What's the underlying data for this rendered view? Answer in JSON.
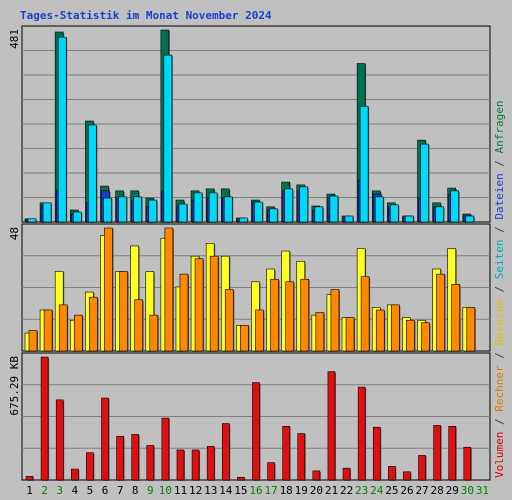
{
  "title": "Tages-Statistik im Monat November 2024",
  "right_legend": [
    {
      "text": "Volumen",
      "color": "#e00000"
    },
    {
      "text": " / ",
      "color": "#404040"
    },
    {
      "text": "Rechner",
      "color": "#e07800"
    },
    {
      "text": " / ",
      "color": "#404040"
    },
    {
      "text": "Besuche",
      "color": "#e0c000"
    },
    {
      "text": " / ",
      "color": "#404040"
    },
    {
      "text": "Seiten",
      "color": "#00a8c8"
    },
    {
      "text": " / ",
      "color": "#404040"
    },
    {
      "text": "Dateien",
      "color": "#1a3fd0"
    },
    {
      "text": " / ",
      "color": "#404040"
    },
    {
      "text": "Anfragen",
      "color": "#008040"
    }
  ],
  "colors": {
    "anfragen": "#007050",
    "dateien": "#1a3fd0",
    "seiten": "#00d8f8",
    "besuche": "#ffff20",
    "rechner": "#ff8800",
    "volumen": "#e01010",
    "weekday_label": "#000000",
    "weekend_label": "#008000"
  },
  "chart_data": [
    {
      "type": "bar",
      "name": "requests-panel",
      "ylabel": "481",
      "ylim": [
        0,
        481
      ],
      "x": [
        "1",
        "2",
        "3",
        "4",
        "5",
        "6",
        "7",
        "8",
        "9",
        "10",
        "11",
        "12",
        "13",
        "14",
        "15",
        "16",
        "17",
        "18",
        "19",
        "20",
        "21",
        "22",
        "23",
        "24",
        "25",
        "26",
        "27",
        "28",
        "29",
        "30",
        "31"
      ],
      "weekend": [
        false,
        true,
        true,
        false,
        false,
        false,
        false,
        false,
        true,
        true,
        false,
        false,
        false,
        false,
        false,
        true,
        true,
        false,
        false,
        false,
        false,
        false,
        true,
        true,
        false,
        false,
        false,
        false,
        false,
        true,
        true
      ],
      "series": [
        {
          "name": "Anfragen",
          "values": [
            8,
            48,
            476,
            30,
            253,
            90,
            78,
            78,
            60,
            481,
            55,
            78,
            83,
            83,
            10,
            55,
            38,
            100,
            93,
            40,
            70,
            15,
            397,
            78,
            48,
            15,
            205,
            48,
            85,
            20,
            0
          ]
        },
        {
          "name": "Dateien",
          "values": [
            5,
            40,
            80,
            20,
            48,
            78,
            60,
            55,
            38,
            78,
            40,
            55,
            60,
            60,
            5,
            48,
            30,
            78,
            78,
            30,
            60,
            10,
            105,
            70,
            38,
            10,
            60,
            38,
            70,
            15,
            0
          ]
        },
        {
          "name": "Seiten",
          "values": [
            8,
            48,
            463,
            25,
            243,
            60,
            63,
            63,
            55,
            418,
            45,
            73,
            73,
            63,
            10,
            50,
            33,
            83,
            88,
            38,
            65,
            15,
            290,
            63,
            43,
            15,
            195,
            38,
            78,
            15,
            0
          ]
        }
      ]
    },
    {
      "type": "bar",
      "name": "visits-panel",
      "ylabel": "48",
      "ylim": [
        0,
        48
      ],
      "x": [
        "1",
        "2",
        "3",
        "4",
        "5",
        "6",
        "7",
        "8",
        "9",
        "10",
        "11",
        "12",
        "13",
        "14",
        "15",
        "16",
        "17",
        "18",
        "19",
        "20",
        "21",
        "22",
        "23",
        "24",
        "25",
        "26",
        "27",
        "28",
        "29",
        "30",
        "31"
      ],
      "series": [
        {
          "name": "Besuche",
          "values": [
            7,
            16,
            31,
            12,
            23,
            45,
            31,
            41,
            31,
            44,
            25,
            37,
            42,
            37,
            10,
            27,
            32,
            39,
            35,
            14,
            22,
            13,
            40,
            17,
            18,
            13,
            12,
            32,
            40,
            17,
            0
          ]
        },
        {
          "name": "Rechner",
          "values": [
            8,
            16,
            18,
            14,
            21,
            48,
            31,
            20,
            14,
            48,
            30,
            36,
            37,
            24,
            10,
            16,
            28,
            27,
            28,
            15,
            24,
            13,
            29,
            16,
            18,
            12,
            11,
            30,
            26,
            17,
            0
          ]
        }
      ]
    },
    {
      "type": "bar",
      "name": "volume-panel",
      "ylabel": "675.29 KB",
      "ylim": [
        0,
        675.29
      ],
      "x": [
        "1",
        "2",
        "3",
        "4",
        "5",
        "6",
        "7",
        "8",
        "9",
        "10",
        "11",
        "12",
        "13",
        "14",
        "15",
        "16",
        "17",
        "18",
        "19",
        "20",
        "21",
        "22",
        "23",
        "24",
        "25",
        "26",
        "27",
        "28",
        "29",
        "30",
        "31"
      ],
      "series": [
        {
          "name": "Volumen",
          "values": [
            20,
            675,
            440,
            60,
            150,
            450,
            240,
            250,
            190,
            340,
            165,
            165,
            185,
            310,
            15,
            535,
            95,
            295,
            255,
            50,
            595,
            65,
            510,
            290,
            75,
            45,
            135,
            300,
            295,
            180,
            0
          ]
        }
      ]
    }
  ]
}
